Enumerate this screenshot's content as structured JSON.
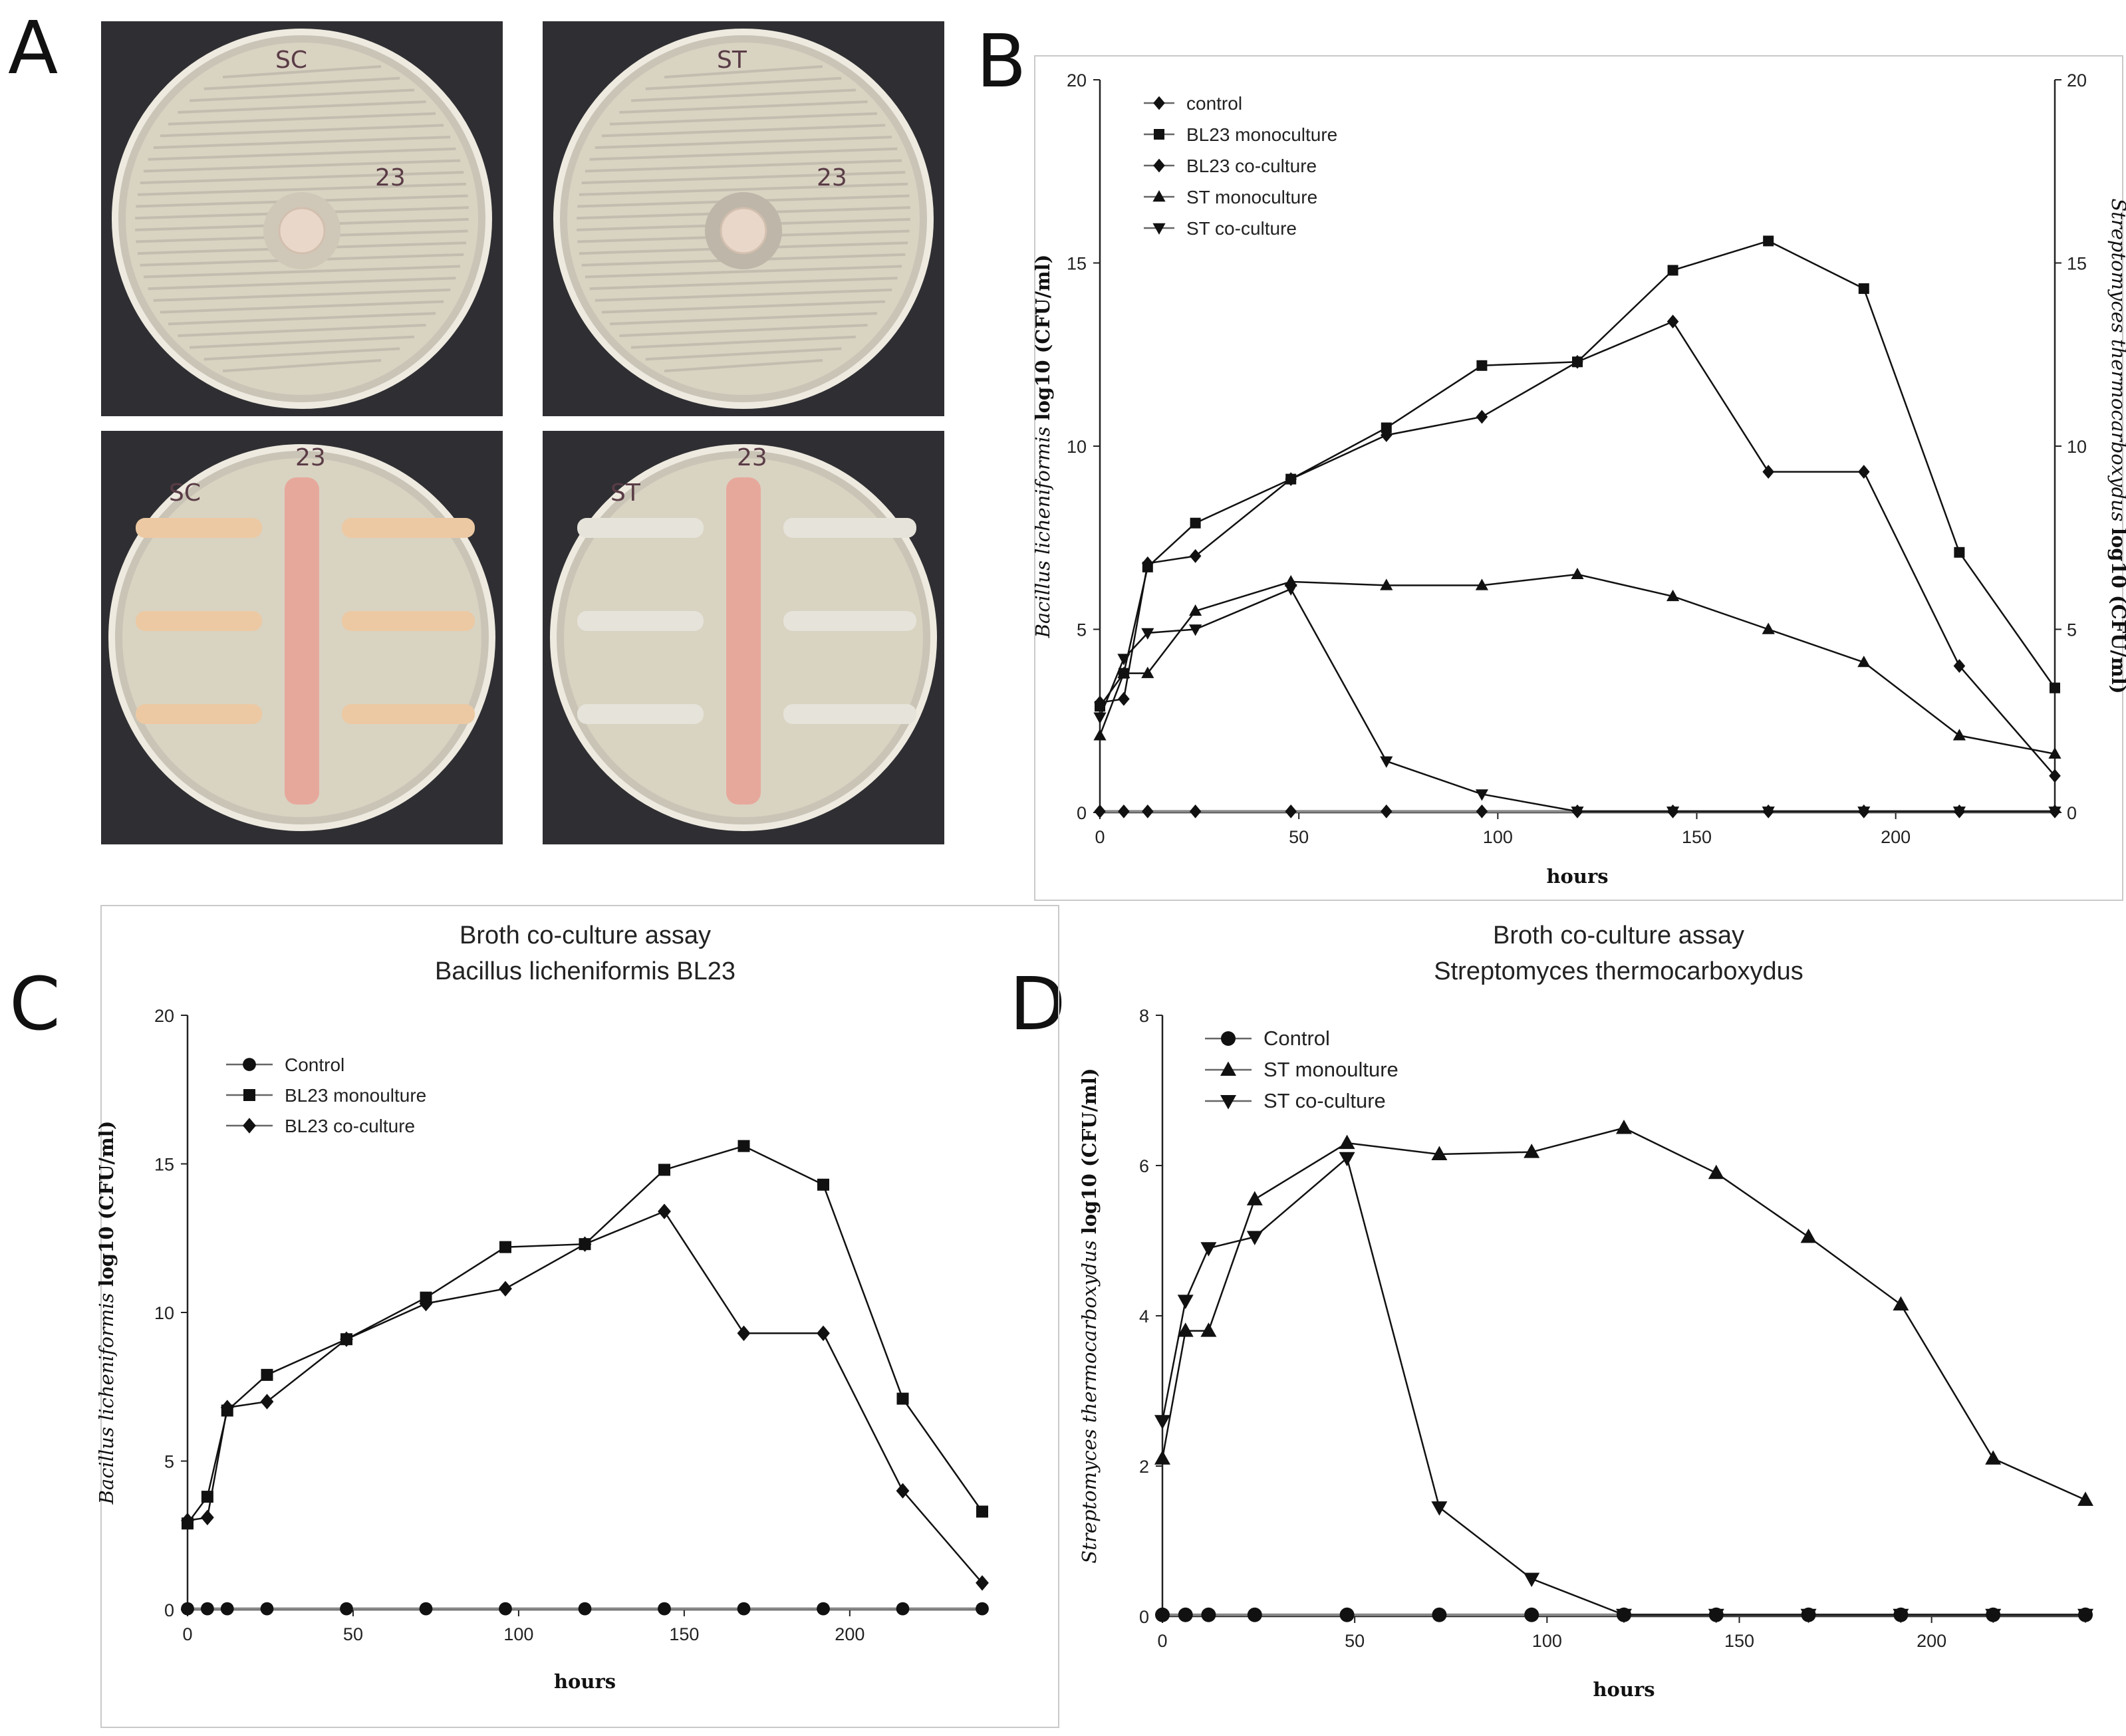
{
  "panels": {
    "a": "A",
    "b": "B",
    "c": "C",
    "d": "D"
  },
  "plates": [
    {
      "label": "SC",
      "mark": "23",
      "style": "agar-diffusion"
    },
    {
      "label": "ST",
      "mark": "23",
      "style": "agar-diffusion"
    },
    {
      "label": "SC",
      "mark": "23",
      "style": "cross-streak"
    },
    {
      "label": "ST",
      "mark": "23",
      "style": "cross-streak"
    }
  ],
  "colors": {
    "plate_background": "#2f2f33",
    "agar": "#d9d3c2",
    "bl23_streak": "#e7a89c",
    "sc_streak": "#ecc9a3",
    "st_streak": "#e6e3da",
    "line": "#111111",
    "control_line": "#888888"
  },
  "chart_data": [
    {
      "id": "B",
      "type": "line",
      "title": "",
      "xlabel": "hours",
      "ylabel_italic": "Bacillus licheniformis",
      "ylabel_bold": "log10 (CFU/ml)",
      "y2label_italic": "Streptomyces thermocarboxydus",
      "y2label_bold": "log10 (CFU/ml)",
      "xlim": [
        0,
        240
      ],
      "ylim": [
        0,
        20
      ],
      "y2lim": [
        0,
        20
      ],
      "xticks": [
        0,
        50,
        100,
        150,
        200
      ],
      "yticks": [
        0,
        5,
        10,
        15,
        20
      ],
      "y2ticks": [
        0,
        5,
        10,
        15,
        20
      ],
      "legend_position": "top-left",
      "x": [
        0,
        6,
        12,
        24,
        48,
        72,
        96,
        120,
        144,
        168,
        192,
        216,
        240
      ],
      "series": [
        {
          "name": "control",
          "marker": "diamond",
          "values": [
            0.03,
            0.03,
            0.03,
            0.03,
            0.03,
            0.03,
            0.03,
            0.03,
            0.03,
            0.03,
            0.03,
            0.03,
            0.03
          ]
        },
        {
          "name": "BL23 monoculture",
          "marker": "square",
          "values": [
            2.9,
            3.8,
            6.7,
            7.9,
            9.1,
            10.5,
            12.2,
            12.3,
            14.8,
            15.6,
            14.3,
            7.1,
            3.4
          ]
        },
        {
          "name": "BL23 co-culture",
          "marker": "diamond",
          "values": [
            3.0,
            3.1,
            6.8,
            7.0,
            9.1,
            10.3,
            10.8,
            12.3,
            13.4,
            9.3,
            9.3,
            4.0,
            1.0
          ]
        },
        {
          "name": "ST monoculture",
          "marker": "triangle-up",
          "values": [
            2.1,
            3.8,
            3.8,
            5.5,
            6.3,
            6.2,
            6.2,
            6.5,
            5.9,
            5.0,
            4.1,
            2.1,
            1.6
          ]
        },
        {
          "name": "ST co-culture",
          "marker": "triangle-down",
          "values": [
            2.6,
            4.2,
            4.9,
            5.0,
            6.1,
            1.4,
            0.5,
            0.03,
            0.03,
            0.03,
            0.03,
            0.03,
            0.03
          ]
        }
      ]
    },
    {
      "id": "C",
      "type": "line",
      "title": "Broth co-culture assay",
      "subtitle": "Bacillus licheniformis BL23",
      "xlabel": "hours",
      "ylabel_italic": "Bacillus licheniformis",
      "ylabel_bold": "log10 (CFU/ml)",
      "xlim": [
        0,
        240
      ],
      "ylim": [
        0,
        20
      ],
      "xticks": [
        0,
        50,
        100,
        150,
        200
      ],
      "yticks": [
        0,
        5,
        10,
        15,
        20
      ],
      "legend_position": "top-left",
      "x": [
        0,
        6,
        12,
        24,
        48,
        72,
        96,
        120,
        144,
        168,
        192,
        216,
        240
      ],
      "series": [
        {
          "name": "Control",
          "marker": "circle",
          "values": [
            0.03,
            0.03,
            0.03,
            0.03,
            0.03,
            0.03,
            0.03,
            0.03,
            0.03,
            0.03,
            0.03,
            0.03,
            0.03
          ]
        },
        {
          "name": "BL23 monoulture",
          "marker": "square",
          "values": [
            2.9,
            3.8,
            6.7,
            7.9,
            9.1,
            10.5,
            12.2,
            12.3,
            14.8,
            15.6,
            14.3,
            7.1,
            3.3
          ]
        },
        {
          "name": "BL23 co-culture",
          "marker": "diamond",
          "values": [
            3.0,
            3.1,
            6.8,
            7.0,
            9.1,
            10.3,
            10.8,
            12.3,
            13.4,
            9.3,
            9.3,
            4.0,
            0.9
          ]
        }
      ]
    },
    {
      "id": "D",
      "type": "line",
      "title": "Broth co-culture assay",
      "subtitle": "Streptomyces thermocarboxydus",
      "xlabel": "hours",
      "ylabel_italic": "Streptomyces thermocarboxydus",
      "ylabel_bold": "log10 (CFU/ml)",
      "xlim": [
        0,
        240
      ],
      "ylim": [
        0,
        8
      ],
      "xticks": [
        0,
        50,
        100,
        150,
        200
      ],
      "yticks": [
        0,
        2,
        4,
        6,
        8
      ],
      "legend_position": "top-left",
      "x": [
        0,
        6,
        12,
        24,
        48,
        72,
        96,
        120,
        144,
        168,
        192,
        216,
        240
      ],
      "series": [
        {
          "name": "Control",
          "marker": "circle",
          "values": [
            0.02,
            0.02,
            0.02,
            0.02,
            0.02,
            0.02,
            0.02,
            0.02,
            0.02,
            0.02,
            0.02,
            0.02,
            0.02
          ]
        },
        {
          "name": "ST monoulture",
          "marker": "triangle-up",
          "values": [
            2.1,
            3.8,
            3.8,
            5.55,
            6.3,
            6.15,
            6.18,
            6.5,
            5.9,
            5.05,
            4.15,
            2.1,
            1.55
          ]
        },
        {
          "name": "ST co-culture",
          "marker": "triangle-down",
          "values": [
            2.6,
            4.2,
            4.9,
            5.05,
            6.1,
            1.45,
            0.5,
            0.02,
            0.02,
            0.02,
            0.02,
            0.02,
            0.02
          ]
        }
      ]
    }
  ]
}
